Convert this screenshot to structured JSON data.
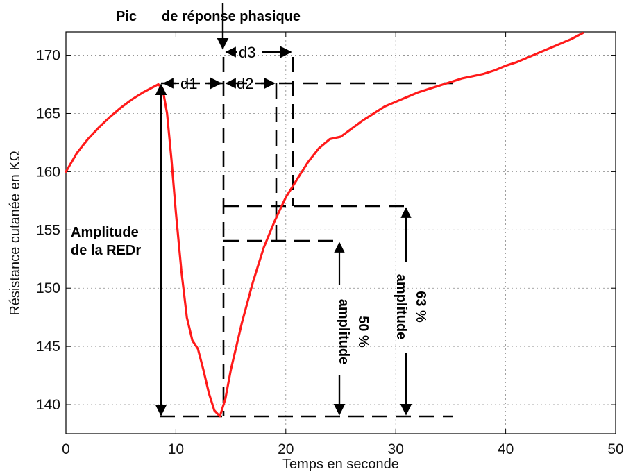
{
  "chart_data": {
    "type": "line",
    "title": "",
    "xlabel": "Temps en seconde",
    "ylabel": "Résistance cutanée en KΩ",
    "xlim": [
      0,
      50
    ],
    "ylim": [
      137.5,
      172
    ],
    "xticks": [
      0,
      10,
      20,
      30,
      40,
      50
    ],
    "yticks": [
      140,
      145,
      150,
      155,
      160,
      165,
      170
    ],
    "grid": true,
    "series": [
      {
        "color": "#ff1a1a",
        "x": [
          0,
          1,
          2,
          3,
          4,
          5,
          6,
          7,
          8,
          8.4,
          8.8,
          9.2,
          9.6,
          10,
          10.5,
          11,
          11.5,
          12,
          12.5,
          13,
          13.5,
          14,
          14.5,
          15,
          16,
          17,
          18,
          19,
          20,
          21,
          22,
          23,
          24,
          25,
          26,
          27,
          28,
          29,
          30,
          31,
          32,
          33,
          34,
          35,
          36,
          37,
          38,
          39,
          40,
          41,
          42,
          43,
          44,
          45,
          46,
          47
        ],
        "y": [
          160,
          161.6,
          162.8,
          163.8,
          164.7,
          165.5,
          166.2,
          166.8,
          167.3,
          167.5,
          167.1,
          165,
          161,
          156.5,
          151.5,
          147.5,
          145.5,
          144.8,
          143,
          141,
          139.5,
          139,
          140.5,
          143,
          147,
          150.5,
          153.5,
          155.8,
          157.8,
          159.3,
          160.8,
          162,
          162.8,
          163,
          163.7,
          164.4,
          165,
          165.6,
          166,
          166.4,
          166.8,
          167.1,
          167.4,
          167.7,
          168,
          168.2,
          168.4,
          168.7,
          169.1,
          169.4,
          169.8,
          170.2,
          170.6,
          171,
          171.4,
          171.9
        ]
      }
    ],
    "annotations": {
      "pic": "Pic",
      "reponse": "de réponse phasique",
      "d1": "d1",
      "d2": "d2",
      "d3": "d3",
      "amplitude_line1": "Amplitude",
      "amplitude_line2": "de la REDr",
      "pct50": "50 %",
      "pct50_sub": "amplitude",
      "pct63": "63 %",
      "pct63_sub": "amplitude"
    }
  }
}
